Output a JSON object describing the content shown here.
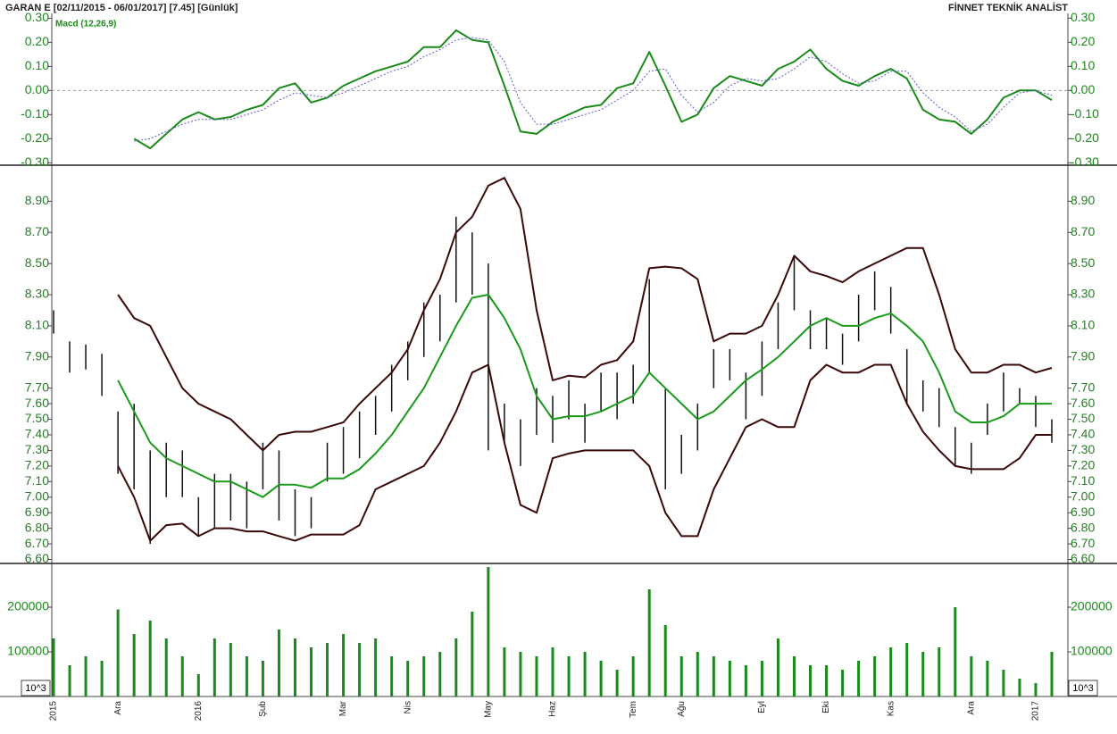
{
  "header": {
    "symbol": "GARAN E  [02/11/2015 - 06/01/2017]  [7.45]  [Günlük]",
    "brand": "FİNNET TEKNİK ANALİST"
  },
  "chart_data": [
    {
      "type": "line",
      "legend": "Macd (12,26,9)",
      "series": [
        {
          "name": "Macd (12,26,9)",
          "color": "#1a8a1a",
          "values": [
            null,
            null,
            null,
            null,
            null,
            -0.2,
            -0.24,
            -0.18,
            -0.12,
            -0.09,
            -0.12,
            -0.11,
            -0.08,
            -0.06,
            0.01,
            0.03,
            -0.05,
            -0.03,
            0.02,
            0.05,
            0.08,
            0.1,
            0.12,
            0.18,
            0.18,
            0.25,
            0.21,
            0.2,
            0.02,
            -0.17,
            -0.18,
            -0.13,
            -0.1,
            -0.07,
            -0.06,
            0.01,
            0.03,
            0.16,
            0.02,
            -0.13,
            -0.1,
            0.01,
            0.06,
            0.04,
            0.02,
            0.09,
            0.12,
            0.17,
            0.09,
            0.04,
            0.02,
            0.06,
            0.09,
            0.05,
            -0.08,
            -0.12,
            -0.13,
            -0.18,
            -0.12,
            -0.03,
            0.0,
            0.0,
            -0.04
          ]
        },
        {
          "color": "#5a5ac8",
          "dashed": true,
          "values": [
            null,
            null,
            null,
            null,
            null,
            -0.21,
            -0.2,
            -0.17,
            -0.14,
            -0.12,
            -0.12,
            -0.12,
            -0.1,
            -0.08,
            -0.04,
            -0.01,
            -0.02,
            -0.03,
            -0.01,
            0.02,
            0.05,
            0.08,
            0.1,
            0.14,
            0.17,
            0.21,
            0.22,
            0.21,
            0.12,
            -0.05,
            -0.14,
            -0.14,
            -0.12,
            -0.1,
            -0.08,
            -0.04,
            0.0,
            0.08,
            0.09,
            -0.02,
            -0.09,
            -0.05,
            0.02,
            0.05,
            0.04,
            0.05,
            0.09,
            0.14,
            0.12,
            0.07,
            0.03,
            0.04,
            0.08,
            0.08,
            -0.01,
            -0.07,
            -0.11,
            -0.17,
            -0.14,
            -0.07,
            -0.01,
            0.0,
            -0.02
          ]
        }
      ],
      "ylim": [
        -0.31,
        0.32
      ],
      "zero_line": true,
      "yticks": [
        {
          "value": 0.3,
          "label": "0.30"
        },
        {
          "value": 0.2,
          "label": "0.20"
        },
        {
          "value": 0.1,
          "label": "0.10"
        },
        {
          "value": 0,
          "label": "0.00"
        },
        {
          "value": -0.1,
          "label": "-0.10"
        },
        {
          "value": -0.2,
          "label": "-0.20"
        },
        {
          "value": -0.3,
          "label": "-0.30"
        }
      ]
    },
    {
      "type": "ohlc",
      "bar_color": "#111111",
      "high": [
        8.2,
        8.0,
        7.98,
        7.92,
        7.55,
        7.6,
        7.3,
        7.35,
        7.3,
        7.0,
        7.15,
        7.15,
        7.1,
        7.35,
        7.3,
        7.05,
        7.0,
        7.35,
        7.45,
        7.55,
        7.65,
        7.85,
        8.0,
        8.25,
        8.3,
        8.8,
        8.7,
        8.5,
        7.6,
        7.5,
        7.7,
        7.65,
        7.75,
        7.6,
        7.8,
        7.8,
        7.85,
        8.4,
        7.7,
        7.4,
        7.6,
        7.95,
        7.95,
        7.8,
        8.0,
        8.25,
        8.55,
        8.2,
        8.15,
        8.05,
        8.3,
        8.45,
        8.35,
        7.95,
        7.75,
        7.7,
        7.45,
        7.35,
        7.6,
        7.8,
        7.7,
        7.65,
        7.5
      ],
      "low": [
        8.05,
        7.8,
        7.82,
        7.65,
        7.15,
        7.05,
        6.7,
        7.0,
        7.0,
        6.75,
        6.8,
        6.85,
        6.8,
        7.05,
        6.85,
        6.75,
        6.8,
        7.1,
        7.15,
        7.25,
        7.4,
        7.55,
        7.75,
        7.9,
        8.0,
        8.25,
        8.3,
        7.3,
        7.35,
        7.2,
        7.4,
        7.35,
        7.5,
        7.35,
        7.55,
        7.5,
        7.6,
        7.8,
        7.05,
        7.15,
        7.3,
        7.7,
        7.75,
        7.5,
        7.65,
        7.95,
        8.2,
        7.95,
        7.95,
        7.85,
        8.0,
        8.2,
        8.05,
        7.6,
        7.55,
        7.45,
        7.2,
        7.15,
        7.4,
        7.55,
        7.6,
        7.45,
        7.35
      ],
      "series": [
        {
          "color": "#3a0808",
          "values": [
            null,
            null,
            null,
            null,
            8.3,
            8.15,
            8.1,
            7.9,
            7.7,
            7.6,
            7.55,
            7.5,
            7.4,
            7.3,
            7.4,
            7.42,
            7.42,
            7.45,
            7.48,
            7.6,
            7.7,
            7.8,
            7.95,
            8.2,
            8.4,
            8.7,
            8.8,
            9.0,
            9.05,
            8.85,
            8.2,
            7.75,
            7.78,
            7.77,
            7.85,
            7.88,
            8.0,
            8.47,
            8.48,
            8.47,
            8.4,
            8.0,
            8.05,
            8.05,
            8.1,
            8.3,
            8.55,
            8.45,
            8.42,
            8.38,
            8.45,
            8.5,
            8.55,
            8.6,
            8.6,
            8.3,
            7.95,
            7.8,
            7.8,
            7.85,
            7.85,
            7.8,
            7.83
          ]
        },
        {
          "color": "#1a9a1a",
          "values": [
            null,
            null,
            null,
            null,
            7.75,
            7.55,
            7.35,
            7.25,
            7.2,
            7.15,
            7.1,
            7.1,
            7.05,
            7.0,
            7.08,
            7.08,
            7.06,
            7.12,
            7.12,
            7.18,
            7.28,
            7.4,
            7.55,
            7.7,
            7.9,
            8.1,
            8.28,
            8.3,
            8.15,
            7.95,
            7.65,
            7.5,
            7.52,
            7.52,
            7.55,
            7.6,
            7.65,
            7.8,
            7.7,
            7.6,
            7.5,
            7.55,
            7.65,
            7.75,
            7.82,
            7.9,
            8.0,
            8.1,
            8.15,
            8.1,
            8.1,
            8.15,
            8.18,
            8.1,
            8.0,
            7.8,
            7.55,
            7.48,
            7.48,
            7.52,
            7.6,
            7.6,
            7.6
          ]
        },
        {
          "color": "#3a0808",
          "values": [
            null,
            null,
            null,
            null,
            7.2,
            7.0,
            6.72,
            6.82,
            6.83,
            6.75,
            6.8,
            6.8,
            6.78,
            6.78,
            6.75,
            6.72,
            6.76,
            6.76,
            6.76,
            6.82,
            7.05,
            7.1,
            7.15,
            7.2,
            7.35,
            7.55,
            7.8,
            7.85,
            7.35,
            6.95,
            6.9,
            7.25,
            7.28,
            7.3,
            7.3,
            7.3,
            7.3,
            7.2,
            6.9,
            6.75,
            6.75,
            7.05,
            7.25,
            7.45,
            7.5,
            7.45,
            7.45,
            7.75,
            7.85,
            7.8,
            7.8,
            7.85,
            7.85,
            7.6,
            7.42,
            7.3,
            7.2,
            7.18,
            7.18,
            7.18,
            7.25,
            7.4,
            7.4
          ]
        }
      ],
      "ylim": [
        6.58,
        9.12
      ],
      "yticks": [
        {
          "value": 8.9,
          "label": "8.90"
        },
        {
          "value": 8.7,
          "label": "8.70"
        },
        {
          "value": 8.5,
          "label": "8.50"
        },
        {
          "value": 8.3,
          "label": "8.30"
        },
        {
          "value": 8.1,
          "label": "8.10"
        },
        {
          "value": 7.9,
          "label": "7.90"
        },
        {
          "value": 7.7,
          "label": "7.70"
        },
        {
          "value": 7.6,
          "label": "7.60"
        },
        {
          "value": 7.5,
          "label": "7.50"
        },
        {
          "value": 7.4,
          "label": "7.40"
        },
        {
          "value": 7.3,
          "label": "7.30"
        },
        {
          "value": 7.2,
          "label": "7.20"
        },
        {
          "value": 7.1,
          "label": "7.10"
        },
        {
          "value": 7,
          "label": "7.00"
        },
        {
          "value": 6.9,
          "label": "6.90"
        },
        {
          "value": 6.8,
          "label": "6.80"
        },
        {
          "value": 6.7,
          "label": "6.70"
        },
        {
          "value": 6.6,
          "label": "6.60"
        }
      ]
    },
    {
      "type": "bar",
      "color": "#1a8a1a",
      "unit": "10^3",
      "categories": [
        "2015",
        null,
        null,
        null,
        "Ara",
        null,
        null,
        null,
        null,
        "2016",
        null,
        null,
        null,
        "Şub",
        null,
        null,
        null,
        null,
        "Mar",
        null,
        null,
        null,
        "Nis",
        null,
        null,
        null,
        null,
        "May",
        null,
        null,
        null,
        "Haz",
        null,
        null,
        null,
        null,
        "Tem",
        null,
        null,
        "Ağu",
        null,
        null,
        null,
        null,
        "Eyl",
        null,
        null,
        null,
        "Eki",
        null,
        null,
        null,
        "Kas",
        null,
        null,
        null,
        null,
        "Ara",
        null,
        null,
        null,
        "2017",
        null
      ],
      "values": [
        130000,
        70000,
        90000,
        80000,
        195000,
        140000,
        170000,
        130000,
        90000,
        50000,
        130000,
        120000,
        90000,
        80000,
        150000,
        130000,
        110000,
        120000,
        140000,
        120000,
        130000,
        90000,
        80000,
        90000,
        100000,
        130000,
        190000,
        290000,
        110000,
        100000,
        90000,
        110000,
        90000,
        100000,
        80000,
        60000,
        90000,
        240000,
        160000,
        90000,
        100000,
        90000,
        80000,
        70000,
        80000,
        130000,
        90000,
        70000,
        70000,
        60000,
        80000,
        90000,
        110000,
        120000,
        100000,
        110000,
        200000,
        90000,
        80000,
        60000,
        40000,
        30000,
        100000
      ],
      "ylim": [
        0,
        296000
      ],
      "yticks": [
        100000,
        200000
      ]
    }
  ]
}
